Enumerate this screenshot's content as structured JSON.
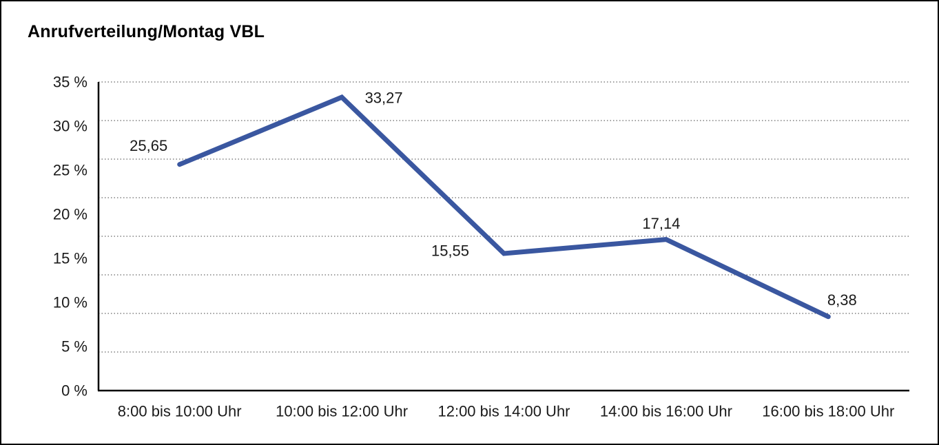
{
  "window": {
    "background_color": "#ffffff",
    "frame_border_color": "#000000"
  },
  "chart_data": {
    "type": "line",
    "title": "Anrufverteilung/Montag VBL",
    "categories": [
      "8:00 bis 10:00 Uhr",
      "10:00 bis 12:00 Uhr",
      "12:00 bis 14:00 Uhr",
      "14:00 bis 16:00 Uhr",
      "16:00 bis 18:00 Uhr"
    ],
    "series": [
      {
        "values": [
          25.65,
          33.27,
          15.55,
          17.14,
          8.38
        ],
        "value_labels": [
          "25,65",
          "33,27",
          "15,55",
          "17,14",
          "8,38"
        ],
        "color": "#3A57A0"
      }
    ],
    "xlabel": "",
    "ylabel": "",
    "ylim": [
      0,
      35
    ],
    "ytick_labels": [
      "35 %",
      "30 %",
      "25 %",
      "20 %",
      "15 %",
      "10 %",
      "5 %",
      "0 %"
    ],
    "grid": "dotted-horizontal",
    "gridline_count": 8,
    "legend": "none",
    "axis_color": "#000000",
    "gridline_color": "#666666",
    "label_color": "#1a1a1a"
  }
}
